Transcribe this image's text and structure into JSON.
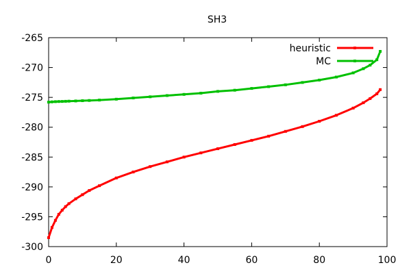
{
  "chart_data": {
    "type": "line",
    "title": "SH3",
    "xlabel": "",
    "ylabel": "",
    "xlim": [
      0,
      100
    ],
    "ylim": [
      -300,
      -265
    ],
    "xticks": [
      0,
      20,
      40,
      60,
      80,
      100
    ],
    "yticks": [
      -300,
      -295,
      -290,
      -285,
      -280,
      -275,
      -270,
      -265
    ],
    "grid": false,
    "legend_position": "top-right",
    "x": [
      0,
      1,
      2,
      3,
      4,
      5,
      6,
      8,
      10,
      12,
      15,
      20,
      25,
      30,
      35,
      40,
      45,
      50,
      55,
      60,
      65,
      70,
      75,
      80,
      85,
      90,
      93,
      95,
      97,
      98
    ],
    "series": [
      {
        "name": "heuristic",
        "color": "#ff0000",
        "values": [
          -298.5,
          -296.8,
          -295.6,
          -294.6,
          -293.9,
          -293.3,
          -292.8,
          -292.0,
          -291.3,
          -290.6,
          -289.8,
          -288.5,
          -287.5,
          -286.6,
          -285.8,
          -285.0,
          -284.3,
          -283.6,
          -282.9,
          -282.2,
          -281.5,
          -280.7,
          -279.9,
          -279.0,
          -278.0,
          -276.8,
          -275.9,
          -275.2,
          -274.4,
          -273.7
        ]
      },
      {
        "name": "MC",
        "color": "#00c000",
        "values": [
          -275.8,
          -275.75,
          -275.72,
          -275.7,
          -275.68,
          -275.66,
          -275.64,
          -275.6,
          -275.56,
          -275.52,
          -275.45,
          -275.3,
          -275.1,
          -274.9,
          -274.7,
          -274.5,
          -274.3,
          -274.0,
          -273.8,
          -273.5,
          -273.2,
          -272.9,
          -272.5,
          -272.1,
          -271.6,
          -270.9,
          -270.2,
          -269.6,
          -268.7,
          -267.3
        ]
      }
    ]
  }
}
